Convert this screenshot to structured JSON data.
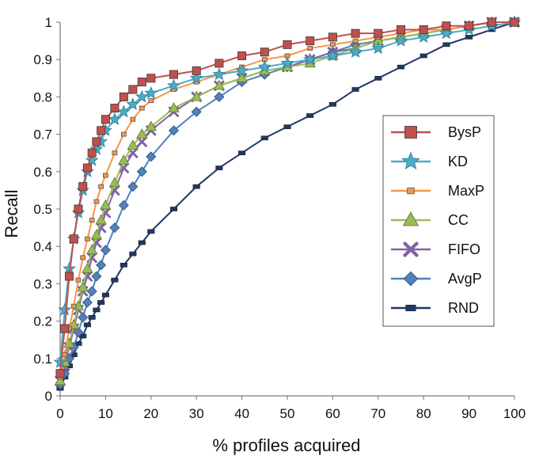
{
  "chart_data": {
    "type": "line",
    "xlabel": "% profiles acquired",
    "ylabel": "Recall",
    "xlim": [
      0,
      100
    ],
    "ylim": [
      0,
      1
    ],
    "x_ticks": [
      "0",
      "10",
      "20",
      "30",
      "40",
      "50",
      "60",
      "70",
      "80",
      "90",
      "100"
    ],
    "y_ticks": [
      "0",
      "0.1",
      "0.2",
      "0.3",
      "0.4",
      "0.5",
      "0.6",
      "0.7",
      "0.8",
      "0.9",
      "1"
    ],
    "grid": false,
    "legend_position": "right",
    "series": [
      {
        "name": "BysP",
        "color": "#c0504d",
        "marker": "square",
        "x": [
          0,
          1,
          2,
          3,
          4,
          5,
          6,
          7,
          8,
          9,
          10,
          12,
          14,
          16,
          18,
          20,
          25,
          30,
          35,
          40,
          45,
          50,
          55,
          60,
          65,
          70,
          75,
          80,
          85,
          90,
          95,
          100
        ],
        "y": [
          0.06,
          0.18,
          0.32,
          0.42,
          0.5,
          0.56,
          0.61,
          0.65,
          0.68,
          0.71,
          0.74,
          0.77,
          0.8,
          0.82,
          0.84,
          0.85,
          0.86,
          0.87,
          0.89,
          0.91,
          0.92,
          0.94,
          0.95,
          0.96,
          0.97,
          0.97,
          0.98,
          0.98,
          0.99,
          0.99,
          1.0,
          1.0
        ]
      },
      {
        "name": "KD",
        "color": "#4bacc6",
        "marker": "star",
        "x": [
          0,
          1,
          2,
          3,
          4,
          5,
          6,
          7,
          8,
          9,
          10,
          12,
          14,
          16,
          18,
          20,
          25,
          30,
          35,
          40,
          45,
          50,
          55,
          60,
          65,
          70,
          75,
          80,
          85,
          90,
          95,
          100
        ],
        "y": [
          0.09,
          0.23,
          0.34,
          0.42,
          0.49,
          0.55,
          0.6,
          0.63,
          0.66,
          0.68,
          0.71,
          0.74,
          0.76,
          0.78,
          0.8,
          0.81,
          0.83,
          0.85,
          0.86,
          0.87,
          0.88,
          0.89,
          0.9,
          0.91,
          0.92,
          0.93,
          0.95,
          0.96,
          0.97,
          0.98,
          0.99,
          1.0
        ]
      },
      {
        "name": "MaxP",
        "color": "#f79646",
        "marker": "smallsquare",
        "x": [
          0,
          1,
          2,
          3,
          4,
          5,
          6,
          7,
          8,
          9,
          10,
          12,
          14,
          16,
          18,
          20,
          25,
          30,
          35,
          40,
          45,
          50,
          55,
          60,
          65,
          70,
          75,
          80,
          85,
          90,
          95,
          100
        ],
        "y": [
          0.05,
          0.11,
          0.18,
          0.24,
          0.31,
          0.37,
          0.42,
          0.47,
          0.52,
          0.56,
          0.59,
          0.65,
          0.7,
          0.74,
          0.77,
          0.79,
          0.82,
          0.84,
          0.86,
          0.88,
          0.9,
          0.91,
          0.93,
          0.94,
          0.95,
          0.96,
          0.97,
          0.98,
          0.98,
          0.99,
          1.0,
          1.0
        ]
      },
      {
        "name": "CC",
        "color": "#9bbb59",
        "marker": "triangle",
        "x": [
          0,
          1,
          2,
          3,
          4,
          5,
          6,
          7,
          8,
          9,
          10,
          12,
          14,
          16,
          18,
          20,
          25,
          30,
          35,
          40,
          45,
          50,
          55,
          60,
          65,
          70,
          75,
          80,
          85,
          90,
          95,
          100
        ],
        "y": [
          0.04,
          0.09,
          0.14,
          0.19,
          0.24,
          0.29,
          0.34,
          0.39,
          0.43,
          0.47,
          0.51,
          0.57,
          0.63,
          0.67,
          0.7,
          0.72,
          0.77,
          0.8,
          0.83,
          0.85,
          0.87,
          0.88,
          0.89,
          0.91,
          0.93,
          0.95,
          0.96,
          0.97,
          0.98,
          0.99,
          1.0,
          1.0
        ]
      },
      {
        "name": "FIFO",
        "color": "#8064a2",
        "marker": "x",
        "x": [
          0,
          1,
          2,
          3,
          4,
          5,
          6,
          7,
          8,
          9,
          10,
          12,
          14,
          16,
          18,
          20,
          25,
          30,
          35,
          40,
          45,
          50,
          55,
          60,
          65,
          70,
          75,
          80,
          85,
          90,
          95,
          100
        ],
        "y": [
          0.04,
          0.08,
          0.13,
          0.18,
          0.23,
          0.28,
          0.32,
          0.37,
          0.41,
          0.45,
          0.49,
          0.55,
          0.61,
          0.65,
          0.68,
          0.71,
          0.76,
          0.8,
          0.83,
          0.85,
          0.87,
          0.88,
          0.9,
          0.92,
          0.93,
          0.95,
          0.96,
          0.97,
          0.98,
          0.99,
          1.0,
          1.0
        ]
      },
      {
        "name": "AvgP",
        "color": "#4f81bd",
        "marker": "diamond",
        "x": [
          0,
          1,
          2,
          3,
          4,
          5,
          6,
          7,
          8,
          9,
          10,
          12,
          14,
          16,
          18,
          20,
          25,
          30,
          35,
          40,
          45,
          50,
          55,
          60,
          65,
          70,
          75,
          80,
          85,
          90,
          95,
          100
        ],
        "y": [
          0.03,
          0.06,
          0.1,
          0.13,
          0.17,
          0.21,
          0.25,
          0.28,
          0.32,
          0.35,
          0.39,
          0.45,
          0.51,
          0.56,
          0.6,
          0.64,
          0.71,
          0.76,
          0.8,
          0.84,
          0.86,
          0.88,
          0.9,
          0.92,
          0.94,
          0.95,
          0.96,
          0.97,
          0.98,
          0.99,
          1.0,
          1.0
        ]
      },
      {
        "name": "RND",
        "color": "#1f3864",
        "marker": "rect",
        "x": [
          0,
          1,
          2,
          3,
          4,
          5,
          6,
          7,
          8,
          9,
          10,
          12,
          14,
          16,
          18,
          20,
          25,
          30,
          35,
          40,
          45,
          50,
          55,
          60,
          65,
          70,
          75,
          80,
          85,
          90,
          95,
          100
        ],
        "y": [
          0.02,
          0.05,
          0.08,
          0.11,
          0.14,
          0.16,
          0.19,
          0.21,
          0.23,
          0.25,
          0.27,
          0.31,
          0.35,
          0.38,
          0.41,
          0.44,
          0.5,
          0.56,
          0.61,
          0.65,
          0.69,
          0.72,
          0.75,
          0.78,
          0.82,
          0.85,
          0.88,
          0.91,
          0.94,
          0.96,
          0.98,
          1.0
        ]
      }
    ]
  }
}
